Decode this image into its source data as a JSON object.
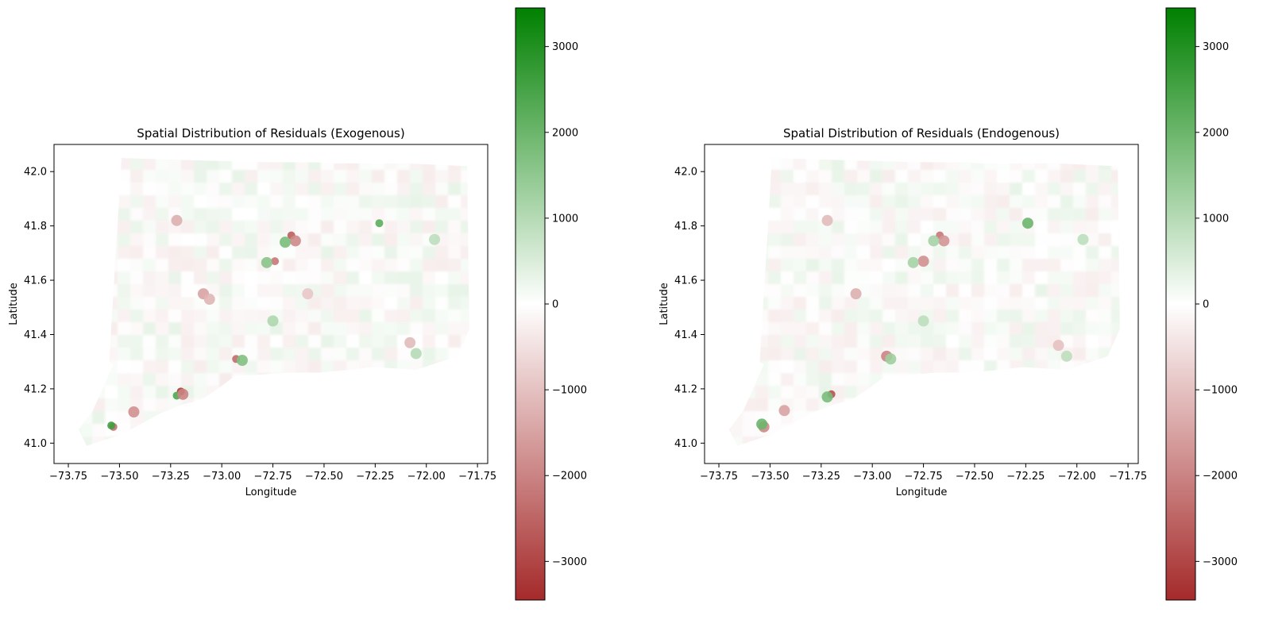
{
  "chart_data": [
    {
      "type": "heatmap",
      "title": "Spatial Distribution of Residuals (Exogenous)",
      "xlabel": "Longitude",
      "ylabel": "Latitude",
      "xlim": [
        -73.82,
        -71.7
      ],
      "ylim": [
        40.925,
        42.1
      ],
      "x_ticks": [
        -73.75,
        -73.5,
        -73.25,
        -73.0,
        -72.75,
        -72.5,
        -72.25,
        -72.0,
        -71.75
      ],
      "x_tick_labels": [
        "−73.75",
        "−73.50",
        "−73.25",
        "−73.00",
        "−72.75",
        "−72.50",
        "−72.25",
        "−72.00",
        "−71.75"
      ],
      "y_ticks": [
        41.0,
        41.2,
        41.4,
        41.6,
        41.8,
        42.0
      ],
      "y_tick_labels": [
        "41.0",
        "41.2",
        "41.4",
        "41.6",
        "41.8",
        "42.0"
      ],
      "grid": false,
      "colorbar": {
        "range": [
          -3450,
          3450
        ],
        "ticks": [
          -3000,
          -2000,
          -1000,
          0,
          1000,
          2000,
          3000
        ],
        "tick_labels": [
          "−3000",
          "−2000",
          "−1000",
          "0",
          "1000",
          "2000",
          "3000"
        ],
        "colors": [
          "#a52a2a",
          "#ffffff",
          "#008000"
        ]
      },
      "hotspots": [
        {
          "lon": -72.66,
          "lat": 41.765,
          "value": -2600
        },
        {
          "lon": -72.64,
          "lat": 41.745,
          "value": -1900
        },
        {
          "lon": -72.69,
          "lat": 41.74,
          "value": 1800
        },
        {
          "lon": -72.74,
          "lat": 41.67,
          "value": -2200
        },
        {
          "lon": -72.78,
          "lat": 41.665,
          "value": 1600
        },
        {
          "lon": -72.23,
          "lat": 41.81,
          "value": 2200
        },
        {
          "lon": -71.96,
          "lat": 41.75,
          "value": 900
        },
        {
          "lon": -72.93,
          "lat": 41.31,
          "value": -2400
        },
        {
          "lon": -72.9,
          "lat": 41.305,
          "value": 1700
        },
        {
          "lon": -73.2,
          "lat": 41.19,
          "value": -3200
        },
        {
          "lon": -73.22,
          "lat": 41.175,
          "value": 2400
        },
        {
          "lon": -73.19,
          "lat": 41.18,
          "value": -2000
        },
        {
          "lon": -73.53,
          "lat": 41.06,
          "value": -2300
        },
        {
          "lon": -73.54,
          "lat": 41.065,
          "value": 2600
        },
        {
          "lon": -73.09,
          "lat": 41.55,
          "value": -1500
        },
        {
          "lon": -73.06,
          "lat": 41.53,
          "value": -1200
        },
        {
          "lon": -73.43,
          "lat": 41.115,
          "value": -1800
        },
        {
          "lon": -73.22,
          "lat": 41.82,
          "value": -1300
        },
        {
          "lon": -72.58,
          "lat": 41.55,
          "value": -900
        },
        {
          "lon": -72.08,
          "lat": 41.37,
          "value": -1100
        },
        {
          "lon": -72.05,
          "lat": 41.33,
          "value": 1000
        },
        {
          "lon": -72.75,
          "lat": 41.45,
          "value": 1100
        }
      ]
    },
    {
      "type": "heatmap",
      "title": "Spatial Distribution of Residuals (Endogenous)",
      "xlabel": "Longitude",
      "ylabel": "Latitude",
      "xlim": [
        -73.82,
        -71.7
      ],
      "ylim": [
        40.925,
        42.1
      ],
      "x_ticks": [
        -73.75,
        -73.5,
        -73.25,
        -73.0,
        -72.75,
        -72.5,
        -72.25,
        -72.0,
        -71.75
      ],
      "x_tick_labels": [
        "−73.75",
        "−73.50",
        "−73.25",
        "−73.00",
        "−72.75",
        "−72.50",
        "−72.25",
        "−72.00",
        "−71.75"
      ],
      "y_ticks": [
        41.0,
        41.2,
        41.4,
        41.6,
        41.8,
        42.0
      ],
      "y_tick_labels": [
        "41.0",
        "41.2",
        "41.4",
        "41.6",
        "41.8",
        "42.0"
      ],
      "grid": false,
      "colorbar": {
        "range": [
          -3450,
          3450
        ],
        "ticks": [
          -3000,
          -2000,
          -1000,
          0,
          1000,
          2000,
          3000
        ],
        "tick_labels": [
          "−3000",
          "−2000",
          "−1000",
          "0",
          "1000",
          "2000",
          "3000"
        ],
        "colors": [
          "#a52a2a",
          "#ffffff",
          "#008000"
        ]
      },
      "hotspots": [
        {
          "lon": -72.67,
          "lat": 41.765,
          "value": -2200
        },
        {
          "lon": -72.65,
          "lat": 41.745,
          "value": -1700
        },
        {
          "lon": -72.7,
          "lat": 41.745,
          "value": 1200
        },
        {
          "lon": -72.75,
          "lat": 41.67,
          "value": -1800
        },
        {
          "lon": -72.8,
          "lat": 41.665,
          "value": 1200
        },
        {
          "lon": -72.24,
          "lat": 41.81,
          "value": 2000
        },
        {
          "lon": -71.97,
          "lat": 41.75,
          "value": 900
        },
        {
          "lon": -72.93,
          "lat": 41.32,
          "value": -2000
        },
        {
          "lon": -72.91,
          "lat": 41.31,
          "value": 1300
        },
        {
          "lon": -73.2,
          "lat": 41.18,
          "value": -2800
        },
        {
          "lon": -73.22,
          "lat": 41.17,
          "value": 1800
        },
        {
          "lon": -73.53,
          "lat": 41.06,
          "value": -1900
        },
        {
          "lon": -73.54,
          "lat": 41.07,
          "value": 2000
        },
        {
          "lon": -73.08,
          "lat": 41.55,
          "value": -1300
        },
        {
          "lon": -73.43,
          "lat": 41.12,
          "value": -1500
        },
        {
          "lon": -73.22,
          "lat": 41.82,
          "value": -1100
        },
        {
          "lon": -72.09,
          "lat": 41.36,
          "value": -1000
        },
        {
          "lon": -72.05,
          "lat": 41.32,
          "value": 900
        },
        {
          "lon": -72.75,
          "lat": 41.45,
          "value": 900
        }
      ]
    }
  ]
}
